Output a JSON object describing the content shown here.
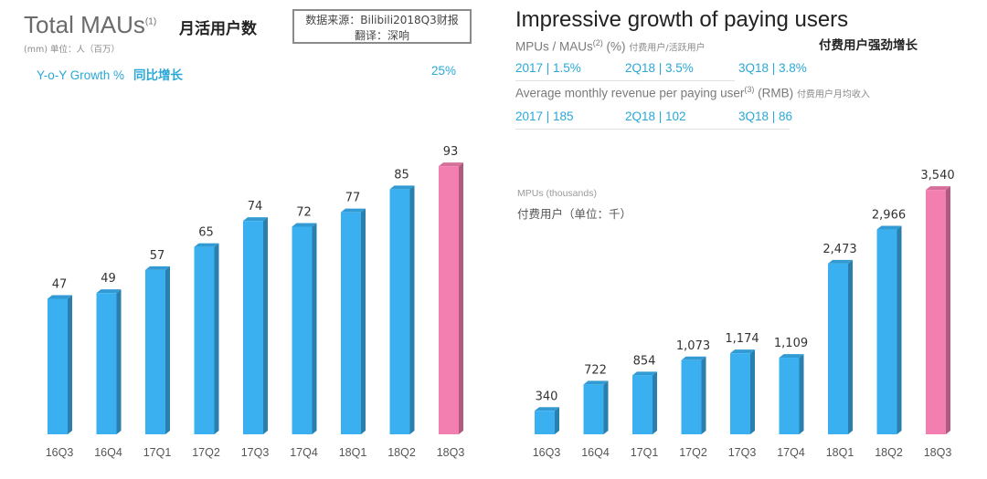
{
  "left_panel": {
    "title": "Total MAUs",
    "title_sup": "(1)",
    "title_cn": "月活用户数",
    "source_line1": "数据来源：Bilibili2018Q3财报",
    "source_line2": "翻译：深响",
    "unit_line": "(mm)  单位：人（百万）",
    "yoy_label": "Y-o-Y Growth %",
    "yoy_label_cn": "同比增长",
    "yoy_value": "25%"
  },
  "right_panel": {
    "title": "Impressive growth of paying users",
    "title_cn": "付费用户强劲增长",
    "mpu_label": "MPUs / MAUs",
    "mpu_sup": "(2)",
    "mpu_unit": "(%)",
    "mpu_cn": "付费用户/活跃用户",
    "mpu_stats": [
      "2017 | 1.5%",
      "2Q18 | 3.5%",
      "3Q18 | 3.8%"
    ],
    "arpu_label": "Average monthly revenue per paying user",
    "arpu_sup": "(3)",
    "arpu_unit": "(RMB)",
    "arpu_cn": "付费用户月均收入",
    "arpu_stats": [
      "2017 | 185",
      "2Q18 | 102",
      "3Q18 | 86"
    ],
    "chart_label": "MPUs (thousands)",
    "chart_label_cn": "付费用户（单位：千）"
  },
  "colors": {
    "blue": "#3ab0f0",
    "pink": "#f37fb0",
    "teal_text": "#2aa8d8"
  },
  "chart_data": [
    {
      "type": "bar",
      "title": "Total MAUs",
      "ylabel": "(mm)",
      "categories": [
        "16Q3",
        "16Q4",
        "17Q1",
        "17Q2",
        "17Q3",
        "17Q4",
        "18Q1",
        "18Q2",
        "18Q3"
      ],
      "values": [
        47,
        49,
        57,
        65,
        74,
        72,
        77,
        85,
        93
      ],
      "value_labels": [
        "47",
        "49",
        "57",
        "65",
        "74",
        "72",
        "77",
        "85",
        "93"
      ],
      "highlight_index": 8,
      "ylim": [
        0,
        100
      ],
      "grid": false
    },
    {
      "type": "bar",
      "title": "MPUs (thousands)",
      "categories": [
        "16Q3",
        "16Q4",
        "17Q1",
        "17Q2",
        "17Q3",
        "17Q4",
        "18Q1",
        "18Q2",
        "18Q3"
      ],
      "values": [
        340,
        722,
        854,
        1073,
        1174,
        1109,
        2473,
        2966,
        3540
      ],
      "value_labels": [
        "340",
        "722",
        "854",
        "1,073",
        "1,174",
        "1,109",
        "2,473",
        "2,966",
        "3,540"
      ],
      "highlight_index": 8,
      "ylim": [
        0,
        3700
      ],
      "grid": false
    }
  ]
}
